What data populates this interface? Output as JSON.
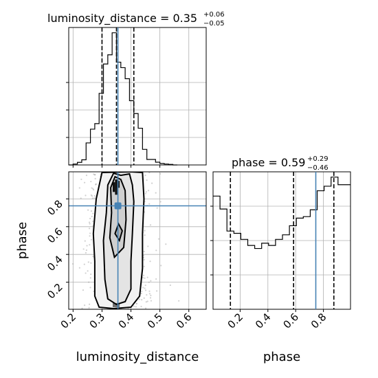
{
  "chart_data": [
    {
      "type": "histogram",
      "panel": "luminosity_distance marginal",
      "title": {
        "param": "luminosity_distance",
        "value": "0.35",
        "plus": "+0.06",
        "minus": "−0.05"
      },
      "x_range": [
        0.185,
        0.66
      ],
      "grid": true,
      "quantile_lines": [
        0.3,
        0.35,
        0.41
      ],
      "truth": 0.355,
      "bin_edges": [
        0.185,
        0.2,
        0.215,
        0.23,
        0.245,
        0.26,
        0.275,
        0.29,
        0.305,
        0.32,
        0.335,
        0.35,
        0.365,
        0.38,
        0.395,
        0.41,
        0.425,
        0.44,
        0.455,
        0.47,
        0.485,
        0.5,
        0.515,
        0.53,
        0.545,
        0.56
      ],
      "counts": [
        0,
        0.005,
        0.014,
        0.028,
        0.12,
        0.195,
        0.225,
        0.39,
        0.55,
        0.6,
        0.72,
        0.56,
        0.53,
        0.47,
        0.35,
        0.28,
        0.2,
        0.085,
        0.03,
        0.03,
        0.015,
        0.008,
        0.005,
        0.003,
        0
      ]
    },
    {
      "type": "scatter-contour",
      "panel": "luminosity_distance vs phase",
      "xlabel": "luminosity_distance",
      "ylabel": "phase",
      "x_range": [
        0.185,
        0.66
      ],
      "y_range": [
        0.005,
        0.995
      ],
      "xticks": [
        "0.2",
        "0.3",
        "0.4",
        "0.5",
        "0.6"
      ],
      "xtick_values": [
        0.2,
        0.3,
        0.4,
        0.5,
        0.6
      ],
      "yticks": [
        "0.2",
        "0.4",
        "0.6",
        "0.8"
      ],
      "ytick_values": [
        0.2,
        0.4,
        0.6,
        0.8
      ],
      "grid": true,
      "truth": [
        0.355,
        0.75
      ],
      "contours": [
        [
          [
            0.345,
            0.55
          ],
          [
            0.36,
            0.5
          ],
          [
            0.37,
            0.57
          ],
          [
            0.357,
            0.62
          ],
          [
            0.345,
            0.55
          ]
        ],
        [
          [
            0.327,
            0.52
          ],
          [
            0.343,
            0.38
          ],
          [
            0.375,
            0.45
          ],
          [
            0.383,
            0.65
          ],
          [
            0.38,
            0.86
          ],
          [
            0.365,
            0.94
          ],
          [
            0.345,
            0.96
          ],
          [
            0.33,
            0.88
          ],
          [
            0.333,
            0.7
          ],
          [
            0.327,
            0.52
          ]
        ],
        [
          [
            0.31,
            0.22
          ],
          [
            0.32,
            0.08
          ],
          [
            0.35,
            0.04
          ],
          [
            0.38,
            0.06
          ],
          [
            0.4,
            0.15
          ],
          [
            0.4,
            0.35
          ],
          [
            0.405,
            0.55
          ],
          [
            0.41,
            0.78
          ],
          [
            0.405,
            0.9
          ],
          [
            0.395,
            0.98
          ],
          [
            0.365,
            0.97
          ],
          [
            0.34,
            0.985
          ],
          [
            0.32,
            0.9
          ],
          [
            0.315,
            0.7
          ],
          [
            0.305,
            0.5
          ],
          [
            0.31,
            0.22
          ]
        ],
        [
          [
            0.275,
            0.1
          ],
          [
            0.29,
            0.02
          ],
          [
            0.34,
            0.01
          ],
          [
            0.4,
            0.02
          ],
          [
            0.43,
            0.1
          ],
          [
            0.44,
            0.3
          ],
          [
            0.44,
            0.55
          ],
          [
            0.445,
            0.8
          ],
          [
            0.44,
            0.99
          ],
          [
            0.4,
            0.995
          ],
          [
            0.3,
            0.99
          ],
          [
            0.28,
            0.8
          ],
          [
            0.27,
            0.55
          ],
          [
            0.275,
            0.35
          ],
          [
            0.275,
            0.1
          ]
        ]
      ],
      "density_cells": [
        {
          "x": [
            0.337,
            0.345
          ],
          "y": [
            0.85,
            0.92
          ]
        },
        {
          "x": [
            0.345,
            0.353
          ],
          "y": [
            0.83,
            0.94
          ]
        },
        {
          "x": [
            0.353,
            0.361
          ],
          "y": [
            0.88,
            0.93
          ]
        },
        {
          "x": [
            0.337,
            0.361
          ],
          "y": [
            0.02,
            0.05
          ]
        }
      ]
    },
    {
      "type": "histogram",
      "panel": "phase marginal",
      "title": {
        "param": "phase",
        "value": "0.59",
        "plus": "+0.29",
        "minus": "−0.46"
      },
      "xlabel": "phase",
      "x_range": [
        0.005,
        0.995
      ],
      "xticks": [
        "0.2",
        "0.4",
        "0.6",
        "0.8"
      ],
      "xtick_values": [
        0.2,
        0.4,
        0.6,
        0.8
      ],
      "grid": true,
      "quantile_lines": [
        0.13,
        0.585,
        0.875
      ],
      "truth": 0.745,
      "bin_edges": [
        0.005,
        0.055,
        0.105,
        0.155,
        0.205,
        0.255,
        0.305,
        0.355,
        0.405,
        0.455,
        0.505,
        0.555,
        0.605,
        0.655,
        0.705,
        0.755,
        0.805,
        0.855,
        0.905,
        0.955,
        0.995
      ],
      "counts": [
        0.745,
        0.66,
        0.515,
        0.5,
        0.46,
        0.42,
        0.4,
        0.435,
        0.42,
        0.46,
        0.49,
        0.55,
        0.6,
        0.61,
        0.655,
        0.78,
        0.81,
        0.87,
        0.82,
        0.82
      ]
    }
  ]
}
